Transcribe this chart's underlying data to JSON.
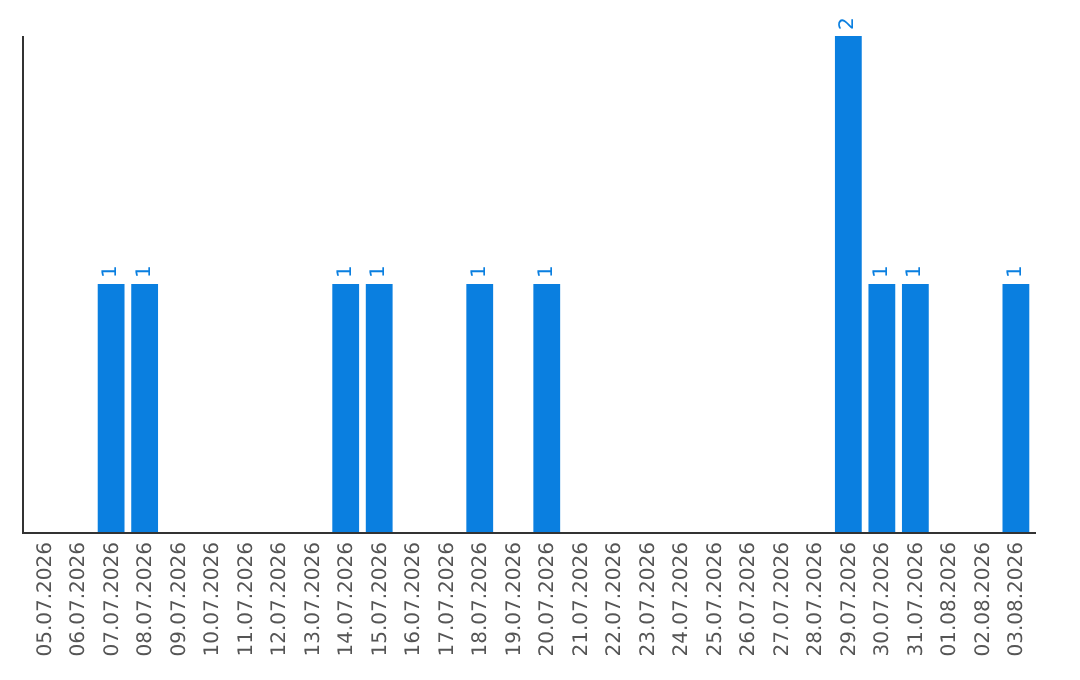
{
  "chart_data": {
    "type": "bar",
    "categories": [
      "05.07.2026",
      "06.07.2026",
      "07.07.2026",
      "08.07.2026",
      "09.07.2026",
      "10.07.2026",
      "11.07.2026",
      "12.07.2026",
      "13.07.2026",
      "14.07.2026",
      "15.07.2026",
      "16.07.2026",
      "17.07.2026",
      "18.07.2026",
      "19.07.2026",
      "20.07.2026",
      "21.07.2026",
      "22.07.2026",
      "23.07.2026",
      "24.07.2026",
      "25.07.2026",
      "26.07.2026",
      "27.07.2026",
      "28.07.2026",
      "29.07.2026",
      "30.07.2026",
      "31.07.2026",
      "01.08.2026",
      "02.08.2026",
      "03.08.2026"
    ],
    "values": [
      0,
      0,
      1,
      1,
      0,
      0,
      0,
      0,
      0,
      1,
      1,
      0,
      0,
      1,
      0,
      1,
      0,
      0,
      0,
      0,
      0,
      0,
      0,
      0,
      2,
      1,
      1,
      0,
      0,
      1
    ],
    "value_labels": [
      null,
      null,
      "1",
      "1",
      null,
      null,
      null,
      null,
      null,
      "1",
      "1",
      null,
      null,
      "1",
      null,
      "1",
      null,
      null,
      null,
      null,
      null,
      null,
      null,
      null,
      "2",
      "1",
      "1",
      null,
      null,
      "1"
    ],
    "color": "#0a7fe0",
    "tick_labels": "x"
  }
}
